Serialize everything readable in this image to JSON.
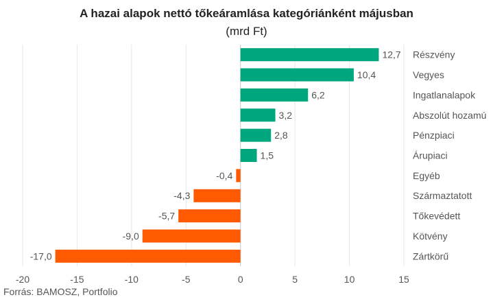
{
  "title": "A hazai alapok nettó tőkeáramlása kategóriánként májusban",
  "subtitle": "(mrd Ft)",
  "source": "Forrás: BAMOSZ, Portfolio",
  "colors": {
    "positive": "#00a67e",
    "negative": "#ff5a00",
    "grid": "#e6e6e6",
    "text": "#555555"
  },
  "chart_data": {
    "type": "bar",
    "orientation": "horizontal",
    "categories": [
      "Részvény",
      "Vegyes",
      "Ingatlanalapok",
      "Abszolút hozamú",
      "Pénzpiaci",
      "Árupiaci",
      "Egyéb",
      "Származtatott",
      "Tőkevédett",
      "Kötvény",
      "Zártkörű"
    ],
    "values": [
      12.7,
      10.4,
      6.2,
      3.2,
      2.8,
      1.5,
      -0.4,
      -4.3,
      -5.7,
      -9.0,
      -17.0
    ],
    "value_labels": [
      "12,7",
      "10,4",
      "6,2",
      "3,2",
      "2,8",
      "1,5",
      "-0,4",
      "-4,3",
      "-5,7",
      "-9,0",
      "-17,0"
    ],
    "xlim": [
      -20,
      15
    ],
    "xticks": [
      -20,
      -15,
      -10,
      -5,
      0,
      5,
      10,
      15
    ],
    "xtick_labels": [
      "-20",
      "-15",
      "-10",
      "-5",
      "0",
      "5",
      "10",
      "15"
    ],
    "grid": true,
    "title": "A hazai alapok nettó tőkeáramlása kategóriánként májusban",
    "subtitle": "(mrd Ft)"
  }
}
